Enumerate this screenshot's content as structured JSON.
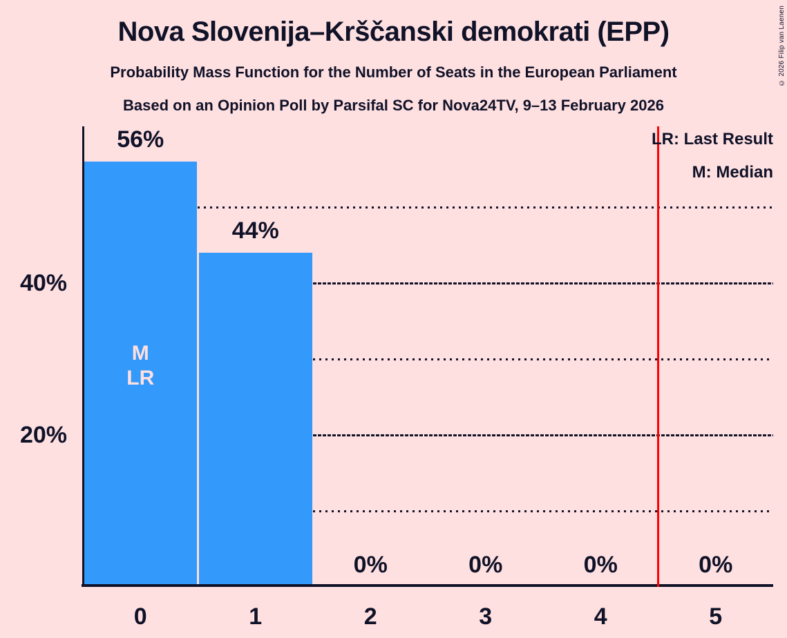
{
  "header": {
    "title": "Nova Slovenija–Krščanski demokrati (EPP)",
    "subtitle1": "Probability Mass Function for the Number of Seats in the European Parliament",
    "subtitle2": "Based on an Opinion Poll by Parsifal SC for Nova24TV, 9–13 February 2026",
    "copyright": "© 2026 Filip van Laenen"
  },
  "legend": {
    "last_result_label": "LR: Last Result",
    "median_label": "M: Median"
  },
  "chart_data": {
    "type": "bar",
    "title": "Probability Mass Function for the Number of Seats in the European Parliament",
    "categories": [
      "0",
      "1",
      "2",
      "3",
      "4",
      "5"
    ],
    "values": [
      56,
      44,
      0,
      0,
      0,
      0
    ],
    "value_labels": [
      "56%",
      "44%",
      "0%",
      "0%",
      "0%",
      "0%"
    ],
    "ylim": [
      0,
      60.6
    ],
    "y_tick_labels": [
      {
        "value": 20,
        "label": "20%"
      },
      {
        "value": 40,
        "label": "40%"
      }
    ],
    "gridlines": {
      "dashed_levels": [
        20,
        40
      ],
      "dotted_levels": [
        10,
        30,
        50
      ]
    },
    "annotations": {
      "bar_inner_labels": [
        {
          "category": "0",
          "lines": [
            "M",
            "LR"
          ]
        }
      ],
      "median_category": "0",
      "last_result_category": "0",
      "vertical_reference_line_x": 4.5
    },
    "legend_position": "top-right",
    "colors": {
      "bar": "#3399fa",
      "background": "#ffe0e1",
      "text": "#101228",
      "reference_line": "#ff0000",
      "bar_inner_label": "#ffe0e1"
    }
  }
}
